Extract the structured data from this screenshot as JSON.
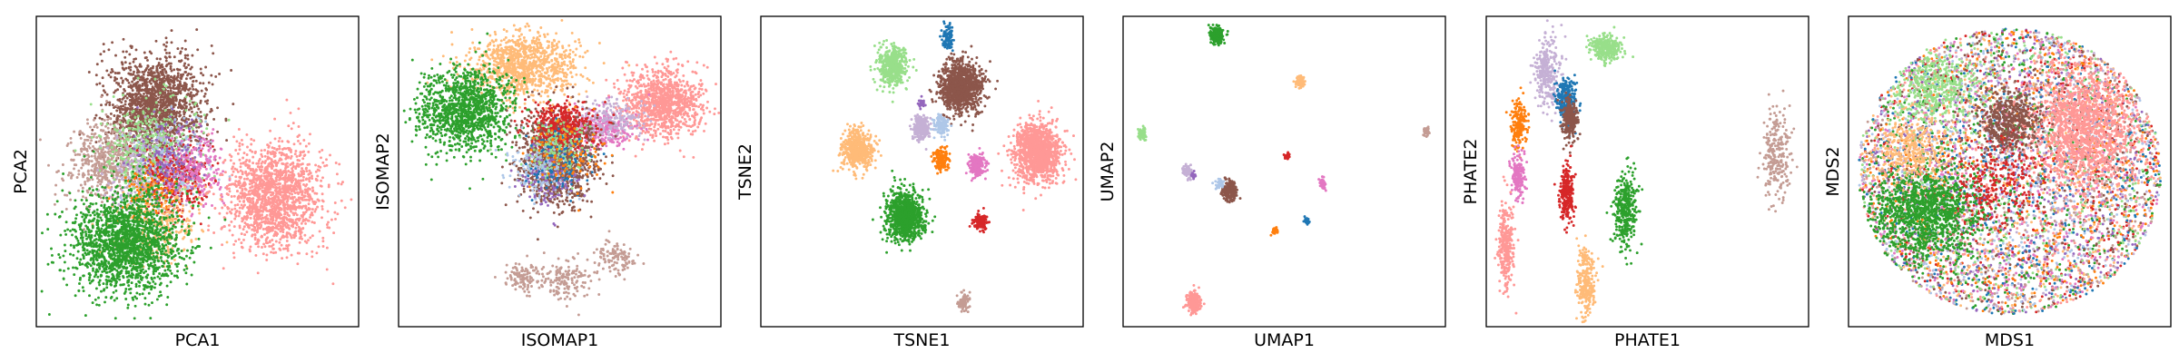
{
  "figure": {
    "panel_count": 6,
    "palette": {
      "blue": "#1f77b4",
      "orange": "#ff7f0e",
      "light_orange": "#ffbb78",
      "green": "#2ca02c",
      "light_green": "#98df8a",
      "red": "#d62728",
      "salmon": "#ff9896",
      "lavender": "#c5b0d5",
      "purple": "#9467bd",
      "brown": "#8c564b",
      "tan": "#c49c94",
      "pink": "#e377c2",
      "light_blue": "#aec7e8"
    }
  },
  "chart_data": [
    {
      "type": "scatter",
      "xlabel": "PCA1",
      "ylabel": "PCA2",
      "ticks": false,
      "grid": false,
      "clusters": [
        {
          "color": "#8c564b",
          "cx": 0.37,
          "cy": 0.29,
          "sx": 0.075,
          "sy": 0.085,
          "n": 1600
        },
        {
          "color": "#c49c94",
          "cx": 0.22,
          "cy": 0.46,
          "sx": 0.06,
          "sy": 0.065,
          "n": 550
        },
        {
          "color": "#98df8a",
          "cx": 0.36,
          "cy": 0.43,
          "sx": 0.07,
          "sy": 0.075,
          "n": 500
        },
        {
          "color": "#c5b0d5",
          "cx": 0.34,
          "cy": 0.52,
          "sx": 0.06,
          "sy": 0.07,
          "n": 250
        },
        {
          "color": "#aec7e8",
          "cx": 0.43,
          "cy": 0.48,
          "sx": 0.06,
          "sy": 0.07,
          "n": 200
        },
        {
          "color": "#d62728",
          "cx": 0.44,
          "cy": 0.52,
          "sx": 0.05,
          "sy": 0.06,
          "n": 300
        },
        {
          "color": "#e377c2",
          "cx": 0.5,
          "cy": 0.49,
          "sx": 0.05,
          "sy": 0.06,
          "n": 220
        },
        {
          "color": "#ff7f0e",
          "cx": 0.36,
          "cy": 0.58,
          "sx": 0.05,
          "sy": 0.05,
          "n": 150
        },
        {
          "color": "#9467bd",
          "cx": 0.41,
          "cy": 0.46,
          "sx": 0.05,
          "sy": 0.06,
          "n": 150
        },
        {
          "color": "#ffbb78",
          "cx": 0.38,
          "cy": 0.67,
          "sx": 0.07,
          "sy": 0.06,
          "n": 250
        },
        {
          "color": "#ff9896",
          "cx": 0.74,
          "cy": 0.58,
          "sx": 0.07,
          "sy": 0.085,
          "n": 1600
        },
        {
          "color": "#2ca02c",
          "cx": 0.28,
          "cy": 0.73,
          "sx": 0.085,
          "sy": 0.085,
          "n": 1800
        }
      ]
    },
    {
      "type": "scatter",
      "xlabel": "ISOMAP1",
      "ylabel": "ISOMAP2",
      "ticks": false,
      "grid": false,
      "clusters": [
        {
          "color": "#ffbb78",
          "cx": 0.39,
          "cy": 0.16,
          "sx": 0.08,
          "sy": 0.05,
          "n": 1000
        },
        {
          "color": "#2ca02c",
          "cx": 0.21,
          "cy": 0.3,
          "sx": 0.075,
          "sy": 0.065,
          "n": 1200
        },
        {
          "color": "#ff9896",
          "cx": 0.82,
          "cy": 0.28,
          "sx": 0.06,
          "sy": 0.055,
          "n": 1000
        },
        {
          "color": "#e377c2",
          "cx": 0.63,
          "cy": 0.36,
          "sx": 0.05,
          "sy": 0.03,
          "n": 300
        },
        {
          "color": "#c5b0d5",
          "cx": 0.66,
          "cy": 0.33,
          "sx": 0.05,
          "sy": 0.03,
          "n": 200
        },
        {
          "color": "#8c564b",
          "cx": 0.49,
          "cy": 0.46,
          "sx": 0.06,
          "sy": 0.075,
          "n": 1100
        },
        {
          "color": "#d62728",
          "cx": 0.51,
          "cy": 0.36,
          "sx": 0.05,
          "sy": 0.04,
          "n": 400
        },
        {
          "color": "#98df8a",
          "cx": 0.49,
          "cy": 0.43,
          "sx": 0.05,
          "sy": 0.05,
          "n": 200
        },
        {
          "color": "#aec7e8",
          "cx": 0.44,
          "cy": 0.5,
          "sx": 0.05,
          "sy": 0.05,
          "n": 150
        },
        {
          "color": "#9467bd",
          "cx": 0.47,
          "cy": 0.52,
          "sx": 0.05,
          "sy": 0.05,
          "n": 120
        },
        {
          "color": "#1f77b4",
          "cx": 0.5,
          "cy": 0.48,
          "sx": 0.06,
          "sy": 0.06,
          "n": 100
        },
        {
          "color": "#ff7f0e",
          "cx": 0.52,
          "cy": 0.44,
          "sx": 0.06,
          "sy": 0.06,
          "n": 100
        },
        {
          "color": "#c49c94",
          "cx": 0.39,
          "cy": 0.84,
          "sx": 0.03,
          "sy": 0.025,
          "n": 120
        },
        {
          "color": "#c49c94",
          "cx": 0.53,
          "cy": 0.85,
          "sx": 0.035,
          "sy": 0.035,
          "n": 140
        },
        {
          "color": "#c49c94",
          "cx": 0.67,
          "cy": 0.78,
          "sx": 0.035,
          "sy": 0.025,
          "n": 120
        }
      ]
    },
    {
      "type": "scatter",
      "xlabel": "TSNE1",
      "ylabel": "TSNE2",
      "ticks": false,
      "grid": false,
      "clusters": [
        {
          "color": "#1f77b4",
          "cx": 0.58,
          "cy": 0.07,
          "sx": 0.01,
          "sy": 0.018,
          "n": 90
        },
        {
          "color": "#98df8a",
          "cx": 0.41,
          "cy": 0.16,
          "sx": 0.022,
          "sy": 0.03,
          "n": 500
        },
        {
          "color": "#8c564b",
          "cx": 0.62,
          "cy": 0.23,
          "sx": 0.032,
          "sy": 0.042,
          "n": 1100
        },
        {
          "color": "#9467bd",
          "cx": 0.5,
          "cy": 0.28,
          "sx": 0.006,
          "sy": 0.008,
          "n": 30
        },
        {
          "color": "#c5b0d5",
          "cx": 0.5,
          "cy": 0.36,
          "sx": 0.013,
          "sy": 0.02,
          "n": 220
        },
        {
          "color": "#aec7e8",
          "cx": 0.56,
          "cy": 0.35,
          "sx": 0.011,
          "sy": 0.016,
          "n": 120
        },
        {
          "color": "#ffbb78",
          "cx": 0.3,
          "cy": 0.43,
          "sx": 0.024,
          "sy": 0.032,
          "n": 550
        },
        {
          "color": "#ff9896",
          "cx": 0.86,
          "cy": 0.44,
          "sx": 0.036,
          "sy": 0.047,
          "n": 1200
        },
        {
          "color": "#ff7f0e",
          "cx": 0.56,
          "cy": 0.46,
          "sx": 0.012,
          "sy": 0.018,
          "n": 150
        },
        {
          "color": "#e377c2",
          "cx": 0.67,
          "cy": 0.48,
          "sx": 0.013,
          "sy": 0.018,
          "n": 170
        },
        {
          "color": "#2ca02c",
          "cx": 0.45,
          "cy": 0.64,
          "sx": 0.028,
          "sy": 0.038,
          "n": 1000
        },
        {
          "color": "#d62728",
          "cx": 0.68,
          "cy": 0.66,
          "sx": 0.011,
          "sy": 0.014,
          "n": 150
        },
        {
          "color": "#c49c94",
          "cx": 0.63,
          "cy": 0.92,
          "sx": 0.009,
          "sy": 0.012,
          "n": 90
        }
      ]
    },
    {
      "type": "scatter",
      "xlabel": "UMAP1",
      "ylabel": "UMAP2",
      "ticks": false,
      "grid": false,
      "clusters": [
        {
          "color": "#2ca02c",
          "cx": 0.29,
          "cy": 0.06,
          "sx": 0.01,
          "sy": 0.014,
          "n": 200
        },
        {
          "color": "#98df8a",
          "cx": 0.06,
          "cy": 0.38,
          "sx": 0.006,
          "sy": 0.01,
          "n": 70
        },
        {
          "color": "#ffbb78",
          "cx": 0.55,
          "cy": 0.21,
          "sx": 0.007,
          "sy": 0.01,
          "n": 80
        },
        {
          "color": "#c49c94",
          "cx": 0.94,
          "cy": 0.37,
          "sx": 0.005,
          "sy": 0.007,
          "n": 40
        },
        {
          "color": "#d62728",
          "cx": 0.51,
          "cy": 0.45,
          "sx": 0.004,
          "sy": 0.006,
          "n": 30
        },
        {
          "color": "#c5b0d5",
          "cx": 0.2,
          "cy": 0.5,
          "sx": 0.008,
          "sy": 0.01,
          "n": 60
        },
        {
          "color": "#9467bd",
          "cx": 0.22,
          "cy": 0.51,
          "sx": 0.004,
          "sy": 0.005,
          "n": 20
        },
        {
          "color": "#8c564b",
          "cx": 0.33,
          "cy": 0.56,
          "sx": 0.011,
          "sy": 0.016,
          "n": 200
        },
        {
          "color": "#aec7e8",
          "cx": 0.3,
          "cy": 0.54,
          "sx": 0.006,
          "sy": 0.008,
          "n": 40
        },
        {
          "color": "#e377c2",
          "cx": 0.62,
          "cy": 0.54,
          "sx": 0.005,
          "sy": 0.008,
          "n": 40
        },
        {
          "color": "#ff7f0e",
          "cx": 0.47,
          "cy": 0.69,
          "sx": 0.005,
          "sy": 0.007,
          "n": 30
        },
        {
          "color": "#1f77b4",
          "cx": 0.57,
          "cy": 0.66,
          "sx": 0.004,
          "sy": 0.006,
          "n": 25
        },
        {
          "color": "#ff9896",
          "cx": 0.22,
          "cy": 0.92,
          "sx": 0.012,
          "sy": 0.016,
          "n": 200
        }
      ]
    },
    {
      "type": "scatter",
      "xlabel": "PHATE1",
      "ylabel": "PHATE2",
      "ticks": false,
      "grid": false,
      "clusters": [
        {
          "color": "#98df8a",
          "cx": 0.37,
          "cy": 0.1,
          "sx": 0.025,
          "sy": 0.02,
          "n": 300
        },
        {
          "color": "#c5b0d5",
          "cx": 0.19,
          "cy": 0.18,
          "sx": 0.02,
          "sy": 0.06,
          "n": 300
        },
        {
          "color": "#1f77b4",
          "cx": 0.25,
          "cy": 0.27,
          "sx": 0.015,
          "sy": 0.035,
          "n": 250
        },
        {
          "color": "#8c564b",
          "cx": 0.26,
          "cy": 0.33,
          "sx": 0.012,
          "sy": 0.03,
          "n": 300
        },
        {
          "color": "#ff7f0e",
          "cx": 0.1,
          "cy": 0.35,
          "sx": 0.012,
          "sy": 0.04,
          "n": 200
        },
        {
          "color": "#e377c2",
          "cx": 0.1,
          "cy": 0.51,
          "sx": 0.01,
          "sy": 0.04,
          "n": 180
        },
        {
          "color": "#d62728",
          "cx": 0.25,
          "cy": 0.57,
          "sx": 0.012,
          "sy": 0.045,
          "n": 250
        },
        {
          "color": "#2ca02c",
          "cx": 0.43,
          "cy": 0.62,
          "sx": 0.018,
          "sy": 0.06,
          "n": 350
        },
        {
          "color": "#ff9896",
          "cx": 0.06,
          "cy": 0.73,
          "sx": 0.012,
          "sy": 0.07,
          "n": 300
        },
        {
          "color": "#ffbb78",
          "cx": 0.31,
          "cy": 0.86,
          "sx": 0.014,
          "sy": 0.06,
          "n": 250
        },
        {
          "color": "#c49c94",
          "cx": 0.9,
          "cy": 0.44,
          "sx": 0.022,
          "sy": 0.07,
          "n": 250
        }
      ]
    },
    {
      "type": "scatter",
      "xlabel": "MDS1",
      "ylabel": "MDS2",
      "ticks": false,
      "grid": false,
      "disk_mixed_points": 6000,
      "disk_colors": [
        "#1f77b4",
        "#ff7f0e",
        "#ffbb78",
        "#2ca02c",
        "#98df8a",
        "#d62728",
        "#ff9896",
        "#9467bd",
        "#c5b0d5",
        "#8c564b",
        "#c49c94",
        "#e377c2",
        "#aec7e8"
      ],
      "clusters": [
        {
          "color": "#2ca02c",
          "cx": 0.24,
          "cy": 0.63,
          "sx": 0.09,
          "sy": 0.075,
          "n": 1300
        },
        {
          "color": "#ff9896",
          "cx": 0.73,
          "cy": 0.36,
          "sx": 0.08,
          "sy": 0.095,
          "n": 1500
        },
        {
          "color": "#8c564b",
          "cx": 0.5,
          "cy": 0.34,
          "sx": 0.045,
          "sy": 0.05,
          "n": 500
        },
        {
          "color": "#98df8a",
          "cx": 0.27,
          "cy": 0.23,
          "sx": 0.07,
          "sy": 0.06,
          "n": 450
        },
        {
          "color": "#ffbb78",
          "cx": 0.2,
          "cy": 0.43,
          "sx": 0.06,
          "sy": 0.05,
          "n": 350
        },
        {
          "color": "#d62728",
          "cx": 0.47,
          "cy": 0.52,
          "sx": 0.07,
          "sy": 0.07,
          "n": 250
        }
      ]
    }
  ]
}
